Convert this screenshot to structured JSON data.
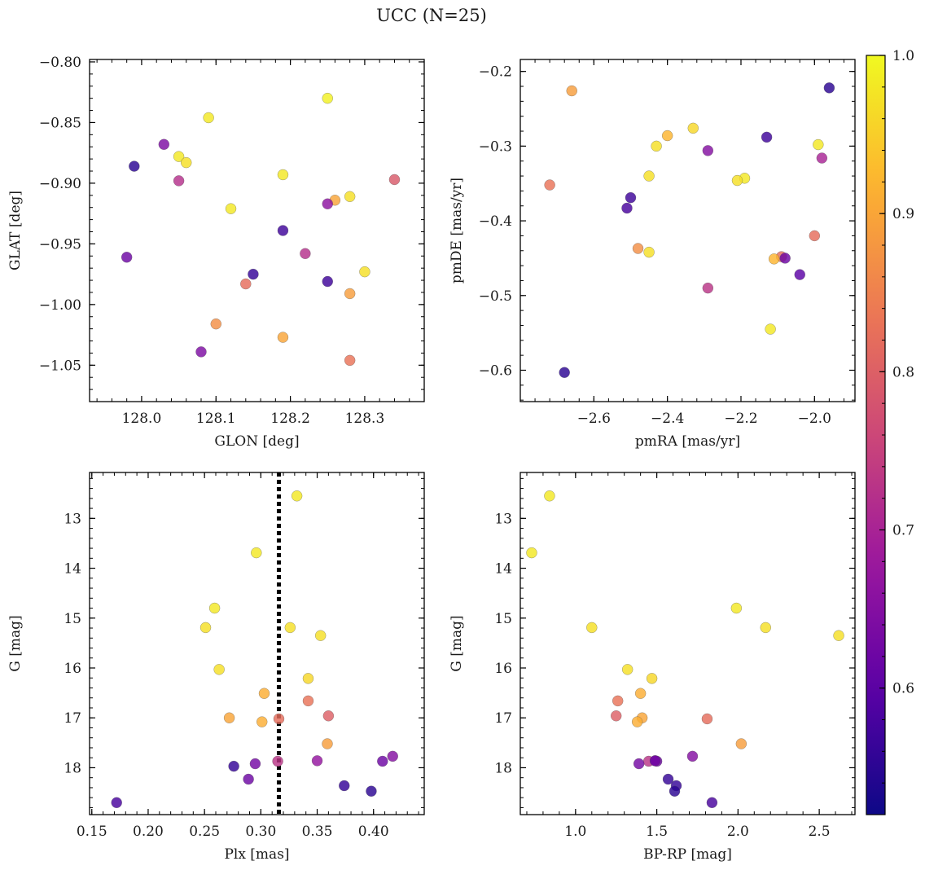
{
  "figure": {
    "title": "UCC (N=25)",
    "colormap": [
      "#0d0887",
      "#5c01a6",
      "#9c179e",
      "#cc4778",
      "#ed7953",
      "#fdb42f",
      "#f0f921"
    ]
  },
  "colorbar": {
    "range": [
      0.52,
      1.0
    ],
    "ticks": [
      0.6,
      0.7,
      0.8,
      0.9,
      1.0
    ],
    "tick_labels": [
      "0.6",
      "0.7",
      "0.8",
      "0.9",
      "1.0"
    ]
  },
  "chart_data": [
    {
      "type": "scatter",
      "xlabel": "GLON [deg]",
      "ylabel": "GLAT [deg]",
      "xlim": [
        127.93,
        128.38
      ],
      "ylim": [
        -1.08,
        -0.798
      ],
      "xticks": [
        128.0,
        128.1,
        128.2,
        128.3
      ],
      "xtick_labels": [
        "128.0",
        "128.1",
        "128.2",
        "128.3"
      ],
      "yticks": [
        -0.8,
        -0.85,
        -0.9,
        -0.95,
        -1.0,
        -1.05
      ],
      "ytick_labels": [
        "−0.80",
        "−0.85",
        "−0.90",
        "−0.95",
        "−1.00",
        "−1.05"
      ],
      "points": [
        {
          "x": 128.25,
          "y": -0.83,
          "c": 0.99
        },
        {
          "x": 128.09,
          "y": -0.846,
          "c": 0.98
        },
        {
          "x": 128.03,
          "y": -0.868,
          "c": 0.64
        },
        {
          "x": 128.05,
          "y": -0.878,
          "c": 0.98
        },
        {
          "x": 128.06,
          "y": -0.883,
          "c": 0.97
        },
        {
          "x": 127.99,
          "y": -0.886,
          "c": 0.55
        },
        {
          "x": 128.19,
          "y": -0.893,
          "c": 0.98
        },
        {
          "x": 128.34,
          "y": -0.897,
          "c": 0.79
        },
        {
          "x": 128.05,
          "y": -0.898,
          "c": 0.72
        },
        {
          "x": 128.28,
          "y": -0.911,
          "c": 0.97
        },
        {
          "x": 128.26,
          "y": -0.914,
          "c": 0.9
        },
        {
          "x": 128.25,
          "y": -0.917,
          "c": 0.66
        },
        {
          "x": 128.12,
          "y": -0.921,
          "c": 0.98
        },
        {
          "x": 128.19,
          "y": -0.939,
          "c": 0.57
        },
        {
          "x": 128.22,
          "y": -0.958,
          "c": 0.72
        },
        {
          "x": 127.98,
          "y": -0.961,
          "c": 0.62
        },
        {
          "x": 128.3,
          "y": -0.973,
          "c": 0.97
        },
        {
          "x": 128.15,
          "y": -0.975,
          "c": 0.56
        },
        {
          "x": 128.25,
          "y": -0.981,
          "c": 0.57
        },
        {
          "x": 128.14,
          "y": -0.983,
          "c": 0.82
        },
        {
          "x": 128.28,
          "y": -0.991,
          "c": 0.89
        },
        {
          "x": 128.1,
          "y": -1.016,
          "c": 0.87
        },
        {
          "x": 128.19,
          "y": -1.027,
          "c": 0.9
        },
        {
          "x": 128.08,
          "y": -1.039,
          "c": 0.64
        },
        {
          "x": 128.28,
          "y": -1.046,
          "c": 0.83
        }
      ]
    },
    {
      "type": "scatter",
      "xlabel": "pmRA [mas/yr]",
      "ylabel": "pmDE [mas/yr]",
      "xlim": [
        -2.8,
        -1.89
      ],
      "ylim": [
        -0.642,
        -0.184
      ],
      "xticks": [
        -2.6,
        -2.4,
        -2.2,
        -2.0
      ],
      "xtick_labels": [
        "−2.6",
        "−2.4",
        "−2.2",
        "−2.0"
      ],
      "yticks": [
        -0.2,
        -0.3,
        -0.4,
        -0.5,
        -0.6
      ],
      "ytick_labels": [
        "−0.2",
        "−0.3",
        "−0.4",
        "−0.5",
        "−0.6"
      ],
      "points": [
        {
          "x": -1.96,
          "y": -0.222,
          "c": 0.55
        },
        {
          "x": -2.66,
          "y": -0.226,
          "c": 0.89
        },
        {
          "x": -2.33,
          "y": -0.276,
          "c": 0.96
        },
        {
          "x": -2.13,
          "y": -0.288,
          "c": 0.57
        },
        {
          "x": -2.4,
          "y": -0.286,
          "c": 0.92
        },
        {
          "x": -1.99,
          "y": -0.298,
          "c": 0.98
        },
        {
          "x": -2.43,
          "y": -0.3,
          "c": 0.97
        },
        {
          "x": -2.29,
          "y": -0.306,
          "c": 0.65
        },
        {
          "x": -1.98,
          "y": -0.316,
          "c": 0.7
        },
        {
          "x": -2.45,
          "y": -0.34,
          "c": 0.97
        },
        {
          "x": -2.19,
          "y": -0.343,
          "c": 0.98
        },
        {
          "x": -2.21,
          "y": -0.346,
          "c": 0.97
        },
        {
          "x": -2.72,
          "y": -0.352,
          "c": 0.83
        },
        {
          "x": -2.5,
          "y": -0.369,
          "c": 0.57
        },
        {
          "x": -2.51,
          "y": -0.383,
          "c": 0.58
        },
        {
          "x": -2.0,
          "y": -0.42,
          "c": 0.82
        },
        {
          "x": -2.48,
          "y": -0.437,
          "c": 0.87
        },
        {
          "x": -2.45,
          "y": -0.442,
          "c": 0.97
        },
        {
          "x": -2.09,
          "y": -0.448,
          "c": 0.82
        },
        {
          "x": -2.11,
          "y": -0.451,
          "c": 0.92
        },
        {
          "x": -2.08,
          "y": -0.45,
          "c": 0.62
        },
        {
          "x": -2.04,
          "y": -0.472,
          "c": 0.6
        },
        {
          "x": -2.29,
          "y": -0.49,
          "c": 0.73
        },
        {
          "x": -2.12,
          "y": -0.545,
          "c": 0.98
        },
        {
          "x": -2.68,
          "y": -0.603,
          "c": 0.55
        }
      ]
    },
    {
      "type": "scatter",
      "xlabel": "Plx [mas]",
      "ylabel": "G [mag]",
      "xlim": [
        0.148,
        0.445
      ],
      "ylim": [
        18.94,
        12.08
      ],
      "xticks": [
        0.15,
        0.2,
        0.25,
        0.3,
        0.35,
        0.4
      ],
      "xtick_labels": [
        "0.15",
        "0.20",
        "0.25",
        "0.30",
        "0.35",
        "0.40"
      ],
      "yticks": [
        13,
        14,
        15,
        16,
        17,
        18
      ],
      "ytick_labels": [
        "13",
        "14",
        "15",
        "16",
        "17",
        "18"
      ],
      "vline": 0.316,
      "points": [
        {
          "x": 0.332,
          "y": 12.55,
          "c": 0.98
        },
        {
          "x": 0.296,
          "y": 13.69,
          "c": 0.98
        },
        {
          "x": 0.259,
          "y": 14.8,
          "c": 0.98
        },
        {
          "x": 0.251,
          "y": 15.19,
          "c": 0.97
        },
        {
          "x": 0.326,
          "y": 15.19,
          "c": 0.97
        },
        {
          "x": 0.353,
          "y": 15.35,
          "c": 0.97
        },
        {
          "x": 0.263,
          "y": 16.03,
          "c": 0.97
        },
        {
          "x": 0.342,
          "y": 16.21,
          "c": 0.96
        },
        {
          "x": 0.303,
          "y": 16.51,
          "c": 0.91
        },
        {
          "x": 0.342,
          "y": 16.66,
          "c": 0.83
        },
        {
          "x": 0.36,
          "y": 16.96,
          "c": 0.8
        },
        {
          "x": 0.272,
          "y": 17.0,
          "c": 0.9
        },
        {
          "x": 0.316,
          "y": 17.02,
          "c": 0.82
        },
        {
          "x": 0.301,
          "y": 17.08,
          "c": 0.91
        },
        {
          "x": 0.359,
          "y": 17.52,
          "c": 0.89
        },
        {
          "x": 0.417,
          "y": 17.77,
          "c": 0.65
        },
        {
          "x": 0.315,
          "y": 17.87,
          "c": 0.73
        },
        {
          "x": 0.408,
          "y": 17.87,
          "c": 0.62
        },
        {
          "x": 0.35,
          "y": 17.86,
          "c": 0.67
        },
        {
          "x": 0.295,
          "y": 17.92,
          "c": 0.63
        },
        {
          "x": 0.276,
          "y": 17.97,
          "c": 0.56
        },
        {
          "x": 0.289,
          "y": 18.23,
          "c": 0.62
        },
        {
          "x": 0.374,
          "y": 18.36,
          "c": 0.56
        },
        {
          "x": 0.398,
          "y": 18.47,
          "c": 0.55
        },
        {
          "x": 0.172,
          "y": 18.7,
          "c": 0.58
        }
      ]
    },
    {
      "type": "scatter",
      "xlabel": "BP-RP [mag]",
      "ylabel": "G [mag]",
      "xlim": [
        0.66,
        2.72
      ],
      "ylim": [
        18.94,
        12.08
      ],
      "xticks": [
        1.0,
        1.5,
        2.0,
        2.5
      ],
      "xtick_labels": [
        "1.0",
        "1.5",
        "2.0",
        "2.5"
      ],
      "yticks": [
        13,
        14,
        15,
        16,
        17,
        18
      ],
      "ytick_labels": [
        "13",
        "14",
        "15",
        "16",
        "17",
        "18"
      ],
      "points": [
        {
          "x": 0.84,
          "y": 12.55,
          "c": 0.98
        },
        {
          "x": 0.73,
          "y": 13.69,
          "c": 0.98
        },
        {
          "x": 1.99,
          "y": 14.8,
          "c": 0.98
        },
        {
          "x": 1.1,
          "y": 15.19,
          "c": 0.97
        },
        {
          "x": 2.17,
          "y": 15.19,
          "c": 0.97
        },
        {
          "x": 2.62,
          "y": 15.35,
          "c": 0.97
        },
        {
          "x": 1.32,
          "y": 16.03,
          "c": 0.97
        },
        {
          "x": 1.47,
          "y": 16.21,
          "c": 0.96
        },
        {
          "x": 1.4,
          "y": 16.51,
          "c": 0.91
        },
        {
          "x": 1.26,
          "y": 16.66,
          "c": 0.83
        },
        {
          "x": 1.25,
          "y": 16.96,
          "c": 0.8
        },
        {
          "x": 1.41,
          "y": 17.0,
          "c": 0.9
        },
        {
          "x": 1.81,
          "y": 17.02,
          "c": 0.82
        },
        {
          "x": 1.38,
          "y": 17.08,
          "c": 0.91
        },
        {
          "x": 2.02,
          "y": 17.52,
          "c": 0.89
        },
        {
          "x": 1.72,
          "y": 17.77,
          "c": 0.65
        },
        {
          "x": 1.45,
          "y": 17.87,
          "c": 0.73
        },
        {
          "x": 1.5,
          "y": 17.87,
          "c": 0.62
        },
        {
          "x": 1.49,
          "y": 17.86,
          "c": 0.67
        },
        {
          "x": 1.39,
          "y": 17.92,
          "c": 0.63
        },
        {
          "x": 1.57,
          "y": 18.23,
          "c": 0.56
        },
        {
          "x": 1.62,
          "y": 18.36,
          "c": 0.56
        },
        {
          "x": 1.61,
          "y": 18.47,
          "c": 0.55
        },
        {
          "x": 1.84,
          "y": 18.7,
          "c": 0.58
        },
        {
          "x": 1.49,
          "y": 17.86,
          "c": 0.62
        }
      ]
    }
  ]
}
